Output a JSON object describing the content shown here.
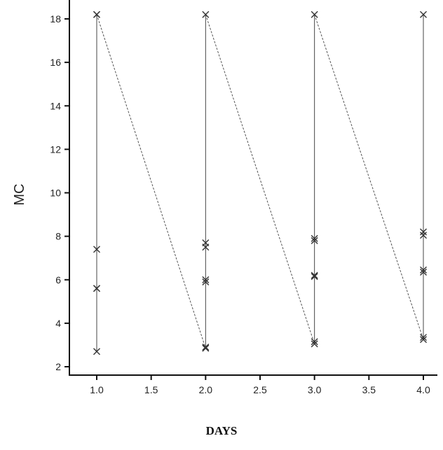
{
  "chart_data": {
    "type": "scatter",
    "title": "",
    "xlabel": "DAYS",
    "ylabel": "MC",
    "xlim": [
      0.95,
      4.13
    ],
    "ylim": [
      1.9,
      18.8
    ],
    "xticks": [
      1.0,
      1.5,
      2.0,
      2.5,
      3.0,
      3.5,
      4.0
    ],
    "xtick_labels": [
      "1.0",
      "1.5",
      "2.0",
      "2.5",
      "3.0",
      "3.5",
      "4.0"
    ],
    "yticks": [
      2,
      4,
      6,
      8,
      10,
      12,
      14,
      16,
      18
    ],
    "ytick_labels": [
      "2",
      "4",
      "6",
      "8",
      "10",
      "12",
      "14",
      "16",
      "18"
    ],
    "grid": false,
    "marker": "x",
    "series": [
      {
        "x": 1.0,
        "values": [
          18.2,
          18.2,
          7.4,
          5.6,
          5.6,
          2.7
        ]
      },
      {
        "x": 2.0,
        "values": [
          18.2,
          7.7,
          7.5,
          6.0,
          5.9,
          2.9,
          2.85
        ]
      },
      {
        "x": 3.0,
        "values": [
          18.2,
          7.9,
          7.8,
          6.2,
          6.15,
          3.15,
          3.05
        ]
      },
      {
        "x": 4.0,
        "values": [
          18.2,
          8.2,
          8.05,
          6.45,
          6.35,
          3.35,
          3.25
        ]
      }
    ],
    "dashed_connectors": [
      {
        "from": [
          1.0,
          18.2
        ],
        "to": [
          2.0,
          2.85
        ]
      },
      {
        "from": [
          2.0,
          18.2
        ],
        "to": [
          3.0,
          3.05
        ]
      },
      {
        "from": [
          3.0,
          18.2
        ],
        "to": [
          4.0,
          3.25
        ]
      }
    ]
  }
}
